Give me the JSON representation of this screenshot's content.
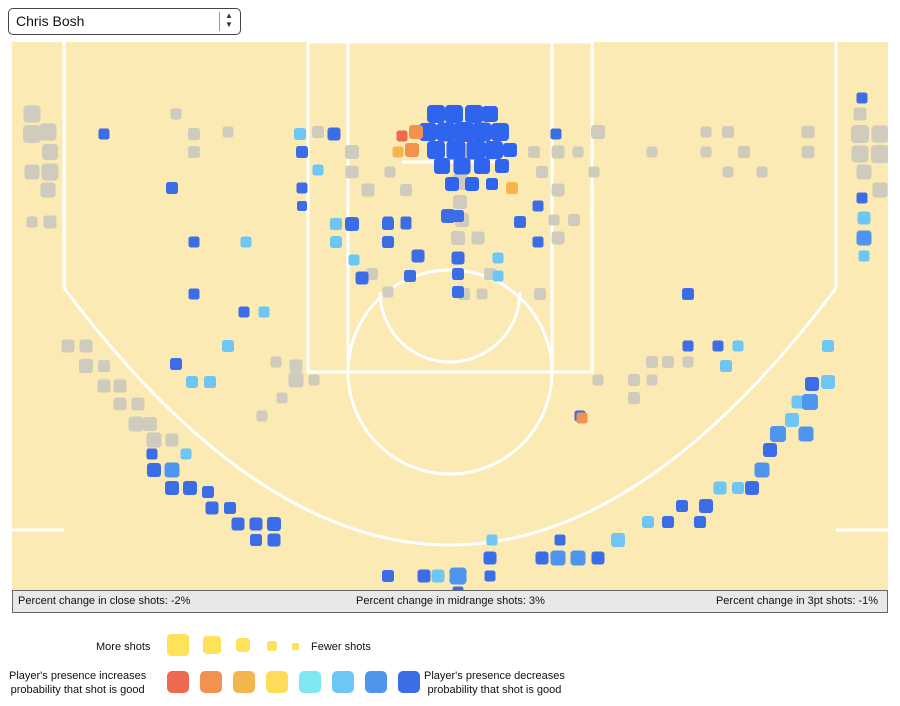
{
  "player_select": {
    "value": "Chris Bosh"
  },
  "stats": {
    "close": "Percent change in close shots: -2%",
    "midrange": "Percent change in midrange shots: 3%",
    "three": "Percent change in 3pt shots: -1%"
  },
  "legend": {
    "more_shots": "More shots",
    "fewer_shots": "Fewer shots",
    "increases": [
      "Player's presence increases",
      "probability that shot is good"
    ],
    "decreases": [
      "Player's presence decreases",
      "probability that shot is good"
    ],
    "size_color": "#fde25a",
    "color_scale": [
      "#ee6a4e",
      "#f2924e",
      "#f5b54e",
      "#fddc5a",
      "#7ee8f2",
      "#6ec6f5",
      "#4f95ee",
      "#3a6de6"
    ]
  },
  "colors": {
    "court_bg": "#fbeab3",
    "court_line": "#ffffff",
    "neutral": "#cfcbbd",
    "dark_blue": "#3a6de6",
    "mid_blue": "#4f95ee",
    "light_blue": "#6ec6f5",
    "bright_blue": "#2f64ee",
    "red": "#ee6a4e",
    "orange": "#f2924e",
    "yellow_orange": "#f5b54e"
  }
}
